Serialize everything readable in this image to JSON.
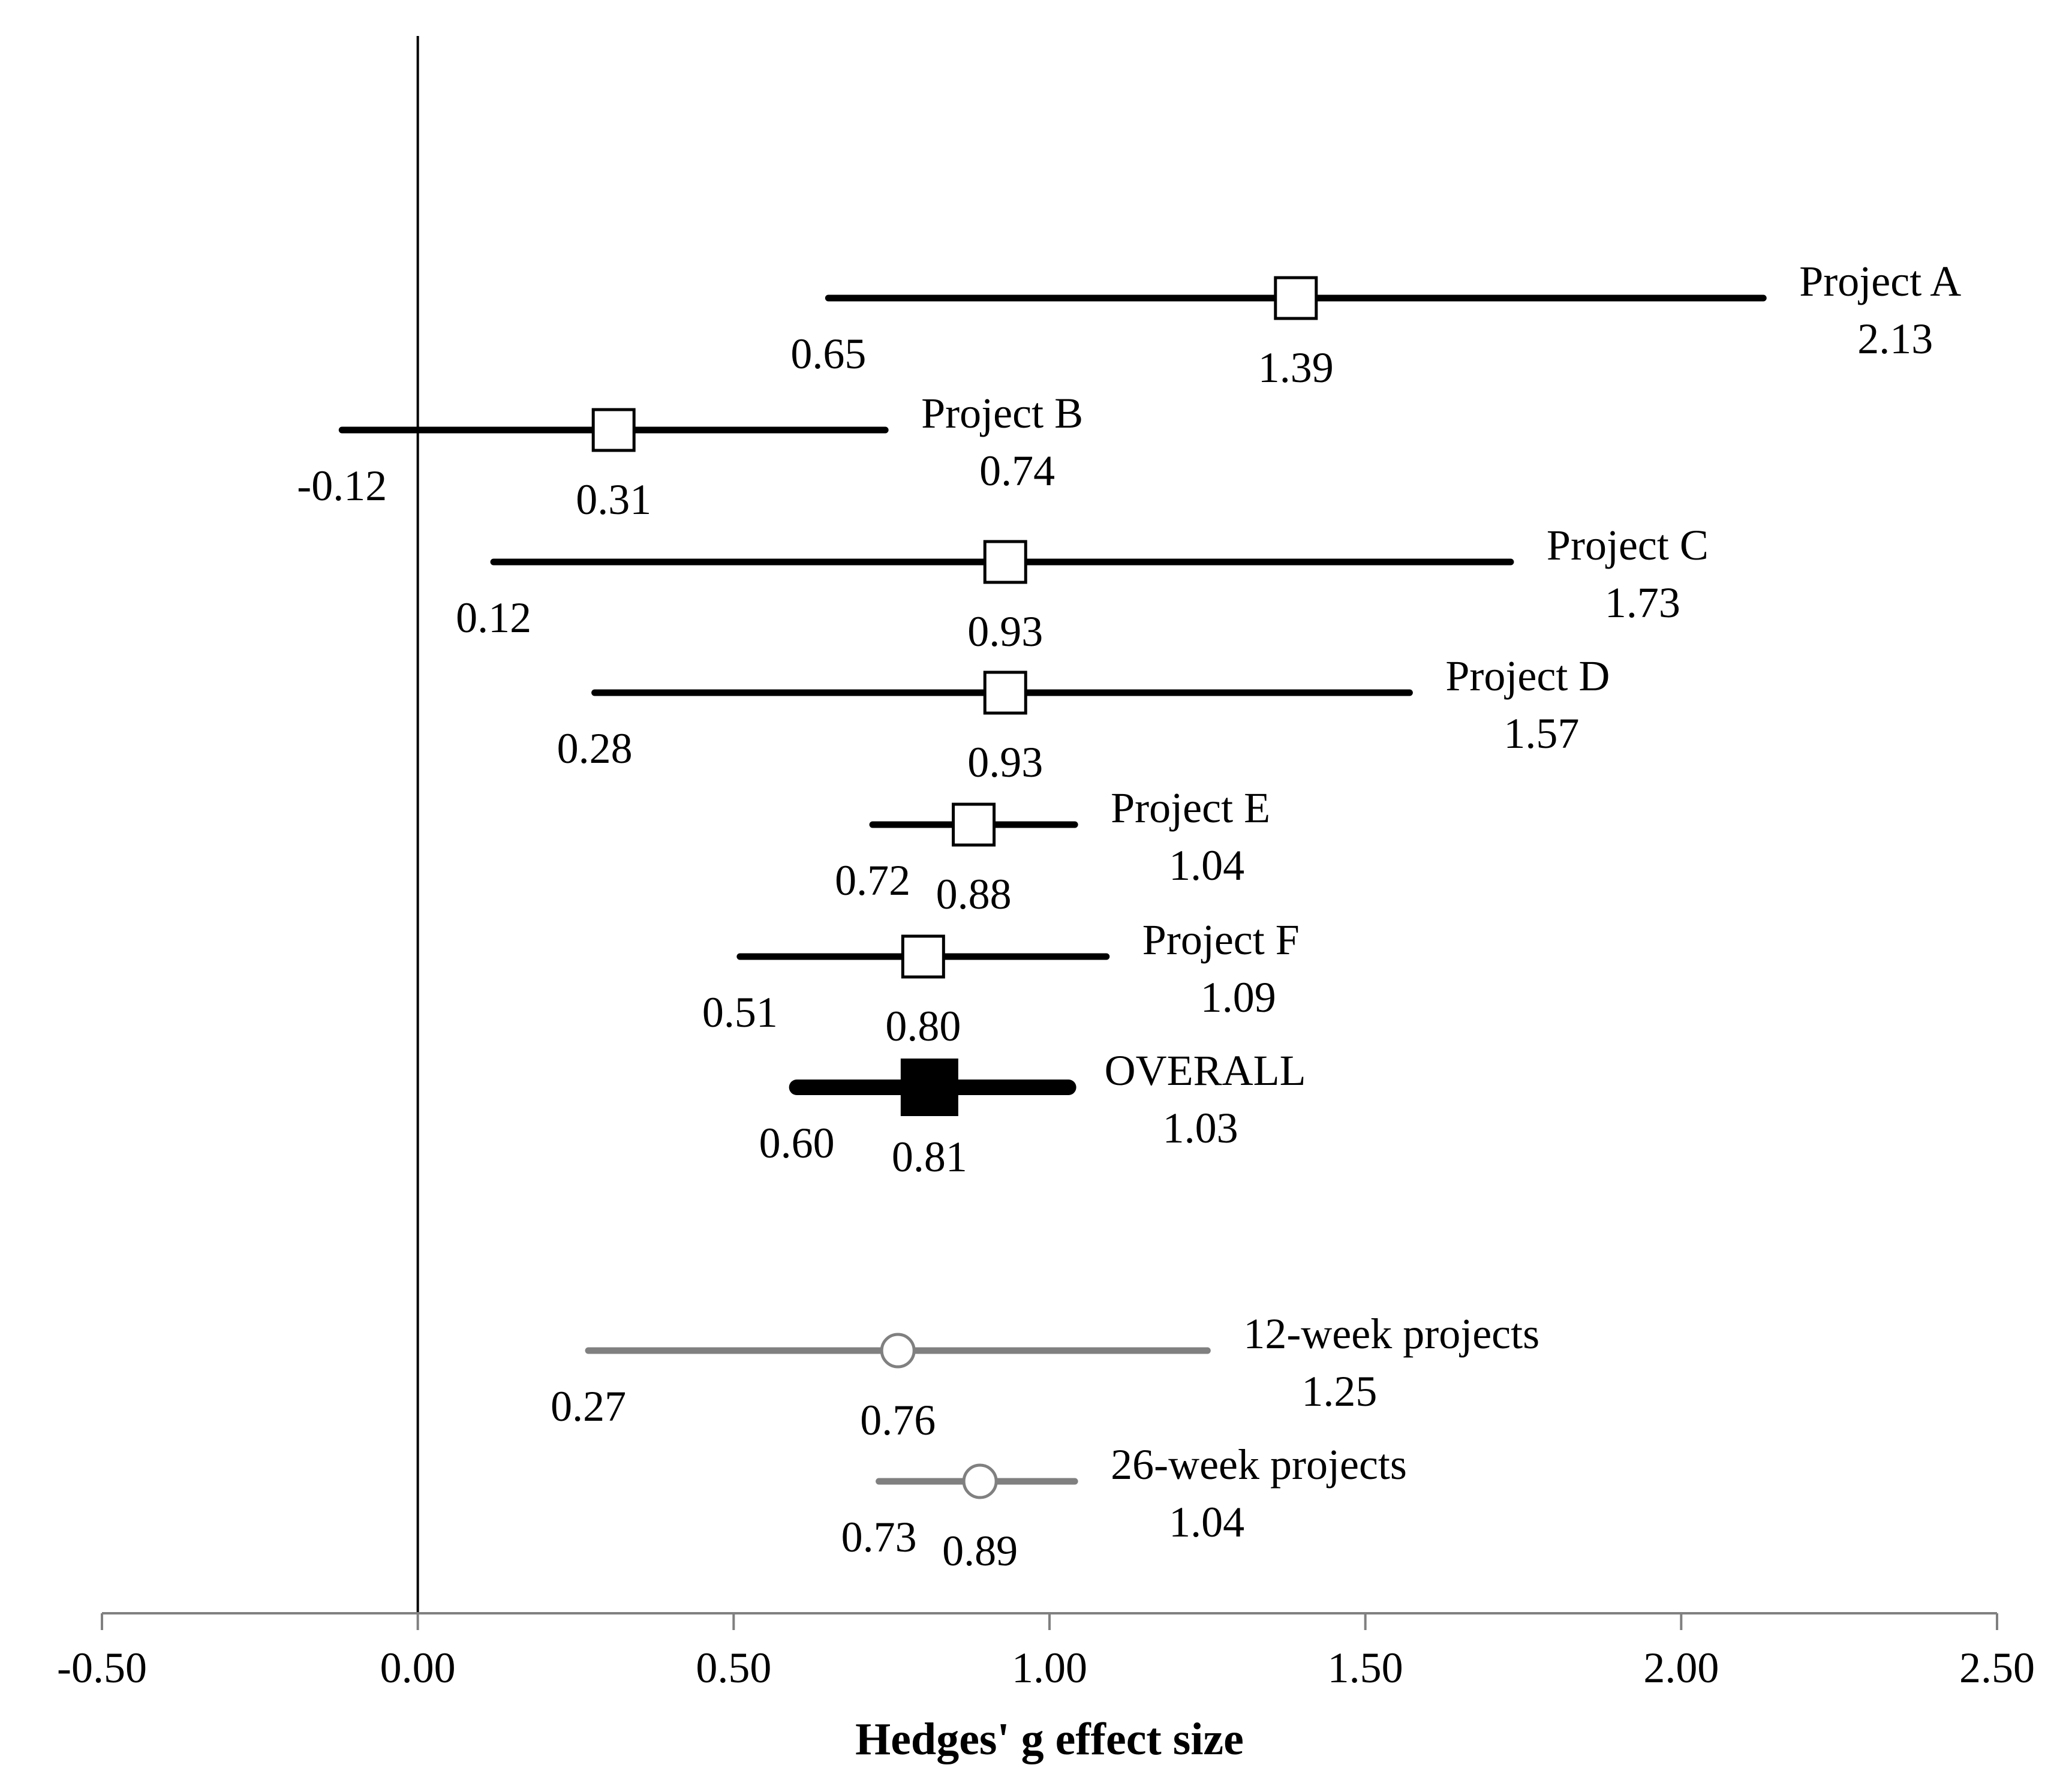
{
  "chart_data": {
    "type": "forest",
    "title": "",
    "xlabel": "Hedges' g effect size",
    "ylabel": "",
    "xlim": [
      -0.5,
      2.5
    ],
    "x_ticks": [
      "-0.50",
      "0.00",
      "0.50",
      "1.00",
      "1.50",
      "2.00",
      "2.50"
    ],
    "x_tick_values": [
      -0.5,
      0.0,
      0.5,
      1.0,
      1.5,
      2.0,
      2.5
    ],
    "reference_line": 0.0,
    "colors": {
      "primary": "#000000",
      "subgroup": "#808080",
      "axis": "#808080"
    },
    "series": [
      {
        "name": "Project A",
        "estimate": 1.39,
        "lower": 0.65,
        "upper": 2.13,
        "estimate_label": "1.39",
        "lower_label": "0.65",
        "upper_label": "2.13",
        "marker": "open-square"
      },
      {
        "name": "Project B",
        "estimate": 0.31,
        "lower": -0.12,
        "upper": 0.74,
        "estimate_label": "0.31",
        "lower_label": "-0.12",
        "upper_label": "0.74",
        "marker": "open-square"
      },
      {
        "name": "Project C",
        "estimate": 0.93,
        "lower": 0.12,
        "upper": 1.73,
        "estimate_label": "0.93",
        "lower_label": "0.12",
        "upper_label": "1.73",
        "marker": "open-square"
      },
      {
        "name": "Project D",
        "estimate": 0.93,
        "lower": 0.28,
        "upper": 1.57,
        "estimate_label": "0.93",
        "lower_label": "0.28",
        "upper_label": "1.57",
        "marker": "open-square"
      },
      {
        "name": "Project E",
        "estimate": 0.88,
        "lower": 0.72,
        "upper": 1.04,
        "estimate_label": "0.88",
        "lower_label": "0.72",
        "upper_label": "1.04",
        "marker": "open-square"
      },
      {
        "name": "Project F",
        "estimate": 0.8,
        "lower": 0.51,
        "upper": 1.09,
        "estimate_label": "0.80",
        "lower_label": "0.51",
        "upper_label": "1.09",
        "marker": "open-square"
      },
      {
        "name": "OVERALL",
        "estimate": 0.81,
        "lower": 0.6,
        "upper": 1.03,
        "estimate_label": "0.81",
        "lower_label": "0.60",
        "upper_label": "1.03",
        "marker": "filled-square"
      },
      {
        "name": "12-week projects",
        "estimate": 0.76,
        "lower": 0.27,
        "upper": 1.25,
        "estimate_label": "0.76",
        "lower_label": "0.27",
        "upper_label": "1.25",
        "marker": "open-circle"
      },
      {
        "name": "26-week projects",
        "estimate": 0.89,
        "lower": 0.73,
        "upper": 1.04,
        "estimate_label": "0.89",
        "lower_label": "0.73",
        "upper_label": "1.04",
        "marker": "open-circle"
      }
    ]
  }
}
